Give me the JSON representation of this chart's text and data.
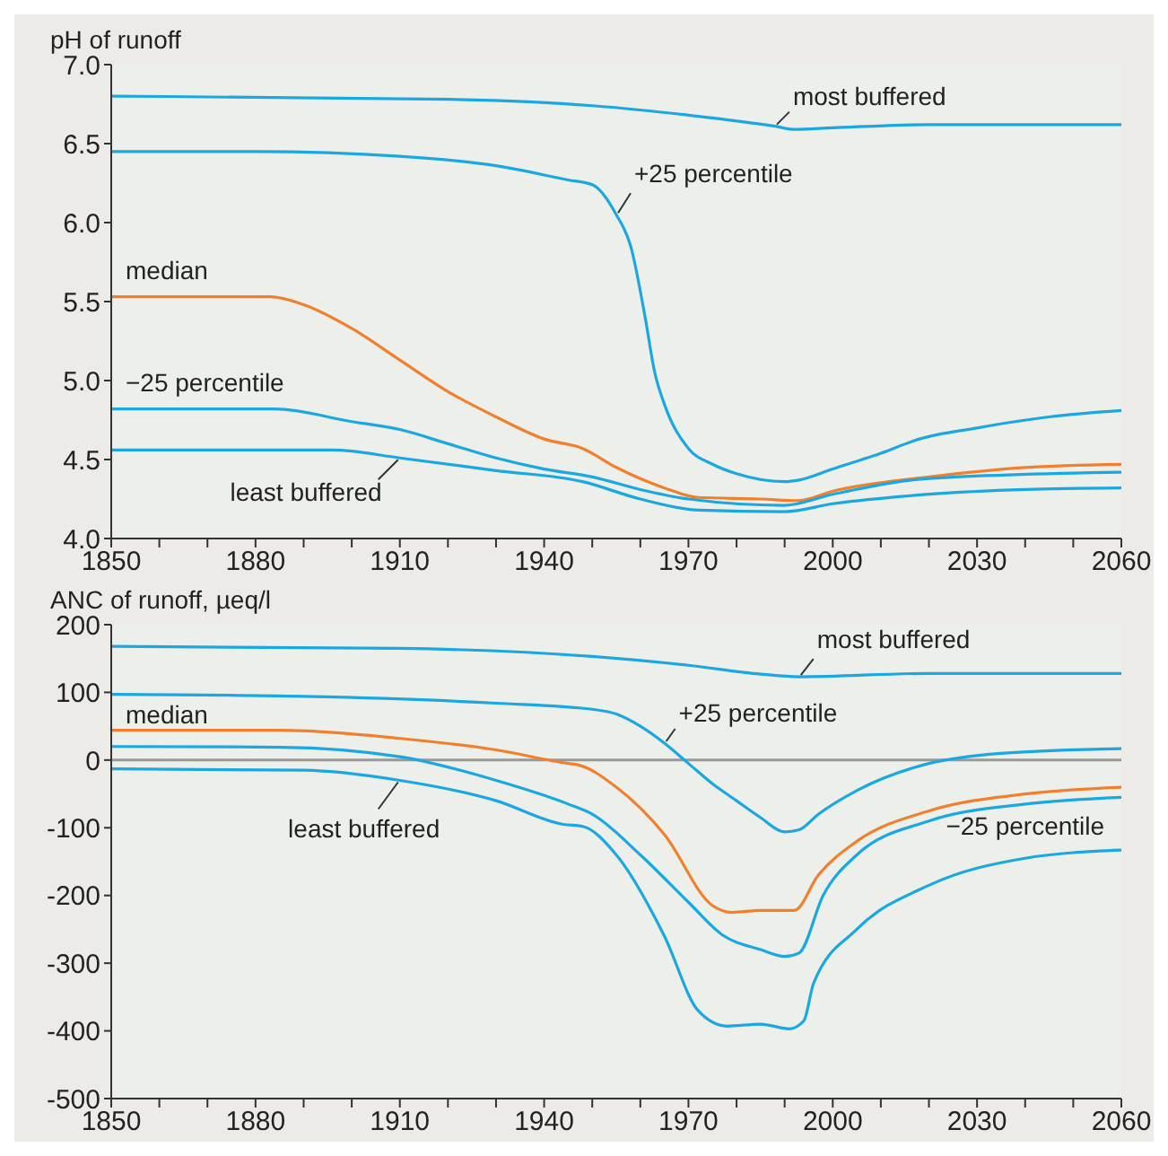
{
  "chart_data": [
    {
      "type": "line",
      "ylabel": "pH of runoff",
      "xlim": [
        1850,
        2060
      ],
      "ylim": [
        4,
        7
      ],
      "xticks": [
        1850,
        {
          "value": 1860,
          "label": null
        },
        {
          "value": 1870,
          "label": null
        },
        1880,
        {
          "value": 1890,
          "label": null
        },
        {
          "value": 1900,
          "label": null
        },
        1910,
        {
          "value": 1920,
          "label": null
        },
        {
          "value": 1930,
          "label": null
        },
        1940,
        {
          "value": 1950,
          "label": null
        },
        {
          "value": 1960,
          "label": null
        },
        1970,
        {
          "value": 1980,
          "label": null
        },
        {
          "value": 1990,
          "label": null
        },
        2000,
        {
          "value": 2010,
          "label": null
        },
        {
          "value": 2020,
          "label": null
        },
        2030,
        {
          "value": 2040,
          "label": null
        },
        {
          "value": 2050,
          "label": null
        },
        2060
      ],
      "yticks": [
        {
          "value": 4,
          "label": "4.0"
        },
        4.5,
        {
          "value": 5,
          "label": "5.0"
        },
        5.5,
        {
          "value": 6,
          "label": "6.0"
        },
        6.5,
        {
          "value": 7,
          "label": "7.0"
        }
      ],
      "grid": false,
      "legend": false,
      "marker": "none",
      "line_style": "solid",
      "series": [
        {
          "name": "most buffered",
          "color": "#1ba7e0",
          "x": [
            1850,
            1920,
            1950,
            1970,
            1988,
            1992,
            2000,
            2020,
            2060
          ],
          "values": [
            6.8,
            6.78,
            6.74,
            6.68,
            6.61,
            6.59,
            6.6,
            6.62,
            6.62
          ]
        },
        {
          "name": "+25 percentile",
          "color": "#1ba7e0",
          "x": [
            1850,
            1880,
            1910,
            1930,
            1945,
            1950,
            1955,
            1958,
            1961,
            1963,
            1965,
            1970,
            1975,
            1980,
            1990,
            1993,
            2000,
            2010,
            2018,
            2030,
            2045,
            2060
          ],
          "values": [
            6.45,
            6.45,
            6.42,
            6.36,
            6.27,
            6.24,
            6.05,
            5.85,
            5.4,
            5.05,
            4.85,
            4.57,
            4.47,
            4.41,
            4.36,
            4.37,
            4.44,
            4.54,
            4.63,
            4.7,
            4.77,
            4.81
          ]
        },
        {
          "name": "median",
          "color": "#f08030",
          "x": [
            1850,
            1883,
            1890,
            1900,
            1910,
            1920,
            1930,
            1940,
            1948,
            1955,
            1965,
            1972,
            1985,
            1993,
            2000,
            2020,
            2040,
            2060
          ],
          "values": [
            5.53,
            5.53,
            5.48,
            5.33,
            5.13,
            4.93,
            4.77,
            4.63,
            4.57,
            4.45,
            4.32,
            4.26,
            4.25,
            4.24,
            4.3,
            4.39,
            4.45,
            4.47
          ]
        },
        {
          "name": "−25 percentile",
          "color": "#1ba7e0",
          "x": [
            1850,
            1884,
            1900,
            1910,
            1920,
            1930,
            1940,
            1950,
            1960,
            1970,
            1990,
            2000,
            2020,
            2060
          ],
          "values": [
            4.82,
            4.82,
            4.74,
            4.69,
            4.6,
            4.51,
            4.44,
            4.39,
            4.31,
            4.25,
            4.21,
            4.28,
            4.38,
            4.42
          ]
        },
        {
          "name": "least buffered",
          "color": "#1ba7e0",
          "x": [
            1850,
            1896,
            1910,
            1930,
            1948,
            1960,
            1972,
            1990,
            2000,
            2020,
            2040,
            2060
          ],
          "values": [
            4.56,
            4.56,
            4.51,
            4.43,
            4.36,
            4.25,
            4.18,
            4.17,
            4.22,
            4.28,
            4.31,
            4.32
          ]
        }
      ]
    },
    {
      "type": "line",
      "ylabel": "ANC of runoff, µeq/l",
      "xlim": [
        1850,
        2060
      ],
      "ylim": [
        -500,
        200
      ],
      "xticks": [
        1850,
        {
          "value": 1860,
          "label": null
        },
        {
          "value": 1870,
          "label": null
        },
        1880,
        {
          "value": 1890,
          "label": null
        },
        {
          "value": 1900,
          "label": null
        },
        1910,
        {
          "value": 1920,
          "label": null
        },
        {
          "value": 1930,
          "label": null
        },
        1940,
        {
          "value": 1950,
          "label": null
        },
        {
          "value": 1960,
          "label": null
        },
        1970,
        {
          "value": 1980,
          "label": null
        },
        {
          "value": 1990,
          "label": null
        },
        2000,
        {
          "value": 2010,
          "label": null
        },
        {
          "value": 2020,
          "label": null
        },
        2030,
        {
          "value": 2040,
          "label": null
        },
        {
          "value": 2050,
          "label": null
        },
        2060
      ],
      "yticks": [
        -500,
        -400,
        -300,
        -200,
        -100,
        0,
        100,
        200
      ],
      "grid": false,
      "legend": false,
      "marker": "none",
      "line_style": "solid",
      "ref_lines": [
        {
          "axis": "y",
          "value": 0,
          "color": "#999999"
        }
      ],
      "series": [
        {
          "name": "most buffered",
          "color": "#1ba7e0",
          "x": [
            1850,
            1910,
            1950,
            1970,
            1985,
            1993,
            2020,
            2060
          ],
          "values": [
            168,
            165,
            153,
            140,
            127,
            123,
            128,
            128
          ]
        },
        {
          "name": "+25 percentile",
          "color": "#1ba7e0",
          "x": [
            1850,
            1890,
            1930,
            1950,
            1955,
            1960,
            1965,
            1970,
            1975,
            1980,
            1985,
            1990,
            1993,
            1997,
            2005,
            2020,
            2035,
            2060
          ],
          "values": [
            97,
            94,
            84,
            75,
            68,
            50,
            25,
            -5,
            -35,
            -60,
            -85,
            -106,
            -103,
            -80,
            -45,
            -5,
            10,
            17
          ]
        },
        {
          "name": "median",
          "color": "#f08030",
          "x": [
            1850,
            1885,
            1910,
            1930,
            1945,
            1947,
            1955,
            1965,
            1975,
            1979,
            1985,
            1992,
            1997,
            2005,
            2020,
            2040,
            2060
          ],
          "values": [
            44,
            44,
            32,
            15,
            -5,
            -7,
            -40,
            -110,
            -215,
            -225,
            -222,
            -222,
            -170,
            -120,
            -75,
            -50,
            -40
          ]
        },
        {
          "name": "−25 percentile",
          "color": "#1ba7e0",
          "x": [
            1850,
            1885,
            1910,
            1930,
            1945,
            1950,
            1960,
            1970,
            1977,
            1985,
            1990,
            1993,
            1998,
            2005,
            2020,
            2040,
            2060
          ],
          "values": [
            20,
            19,
            5,
            -30,
            -65,
            -80,
            -140,
            -210,
            -258,
            -280,
            -290,
            -285,
            -200,
            -140,
            -90,
            -65,
            -55
          ]
        },
        {
          "name": "least buffered",
          "color": "#1ba7e0",
          "x": [
            1850,
            1890,
            1910,
            1930,
            1944,
            1948,
            1955,
            1965,
            1972,
            1978,
            1985,
            1991,
            1994,
            1996,
            2005,
            2020,
            2040,
            2060
          ],
          "values": [
            -13,
            -15,
            -30,
            -60,
            -95,
            -98,
            -140,
            -260,
            -370,
            -393,
            -390,
            -397,
            -385,
            -330,
            -250,
            -185,
            -145,
            -133
          ]
        }
      ]
    }
  ]
}
